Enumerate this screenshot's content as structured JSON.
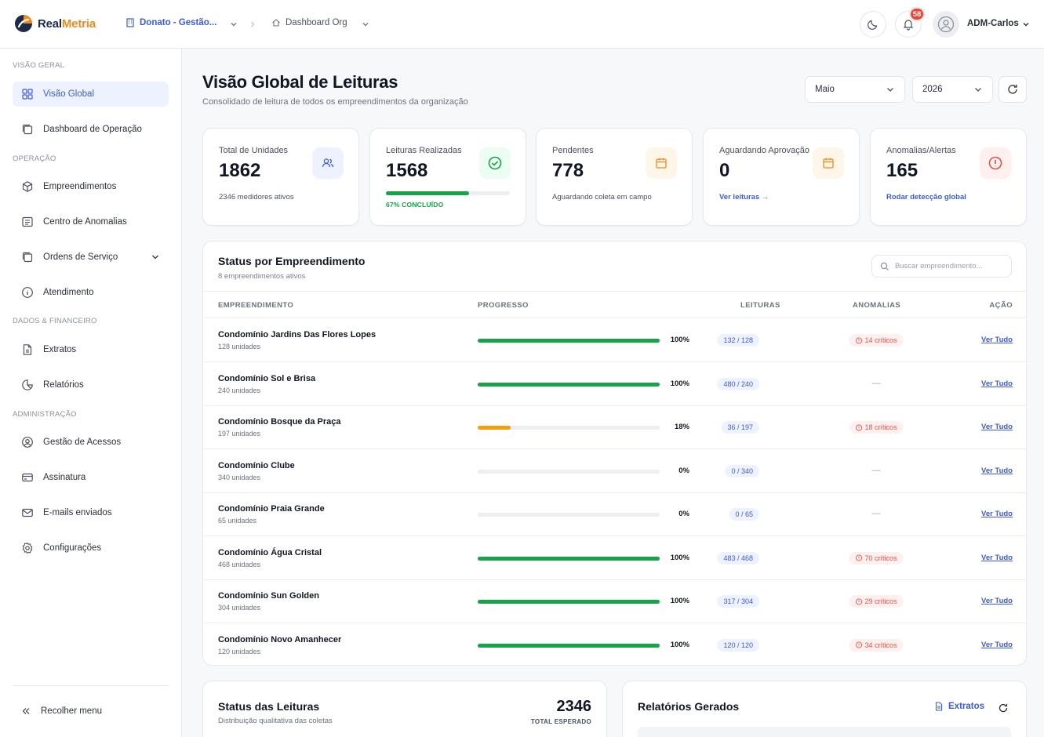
{
  "brand": {
    "name_part1": "Real",
    "name_part2": "Metria",
    "accent": "#f08a1c",
    "primary": "#1e2a4a"
  },
  "breadcrumb": {
    "org": "Donato - Gestão...",
    "page": "Dashboard Org"
  },
  "header": {
    "notifications_count": "58",
    "user_name": "ADM-Carlos"
  },
  "sidebar": {
    "sections": [
      {
        "label": "VISÃO GERAL"
      },
      {
        "label": "OPERAÇÃO"
      },
      {
        "label": "DADOS & FINANCEIRO"
      },
      {
        "label": "ADMINISTRAÇÃO"
      }
    ],
    "items": [
      {
        "label": "Visão Global",
        "icon": "grid-icon",
        "active": true
      },
      {
        "label": "Dashboard de Operação",
        "icon": "copy-icon"
      },
      {
        "label": "Empreendimentos",
        "icon": "box-icon"
      },
      {
        "label": "Centro de Anomalias",
        "icon": "list-icon"
      },
      {
        "label": "Ordens de Serviço",
        "icon": "copy-icon"
      },
      {
        "label": "Atendimento",
        "icon": "info-icon"
      },
      {
        "label": "Extratos",
        "icon": "file-icon"
      },
      {
        "label": "Relatórios",
        "icon": "pie-icon"
      },
      {
        "label": "Gestão de Acessos",
        "icon": "user-circle-icon"
      },
      {
        "label": "Assinatura",
        "icon": "card-icon"
      },
      {
        "label": "E-mails enviados",
        "icon": "mail-icon"
      },
      {
        "label": "Configurações",
        "icon": "gear-icon"
      }
    ],
    "collapse_label": "Recolher menu"
  },
  "page": {
    "title": "Visão Global de Leituras",
    "subtitle": "Consolidado de leitura de todos os empreendimentos da organização",
    "month": "Maio",
    "year": "2026"
  },
  "stats": [
    {
      "label": "Total de Unidades",
      "value": "1862",
      "sub": "2346 medidores ativos",
      "icon": "users-icon",
      "color": "#3b5bdb"
    },
    {
      "label": "Leituras Realizadas",
      "value": "1568",
      "sub": "67% CONCLUÍDO",
      "progress": 0.67,
      "icon": "check-circle-icon",
      "color": "#16a34a"
    },
    {
      "label": "Pendentes",
      "value": "778",
      "sub": "Aguardando coleta em campo",
      "icon": "calendar-icon",
      "color": "#f08a1c"
    },
    {
      "label": "Aguardando Aprovação",
      "value": "0",
      "sub": "Ver leituras →",
      "icon": "calendar-icon",
      "color": "#f08a1c"
    },
    {
      "label": "Anomalias/Alertas",
      "value": "165",
      "sub": "Rodar detecção global",
      "icon": "alert-circle-icon",
      "color": "#e25547"
    }
  ],
  "status_panel": {
    "title": "Status por Empreendimento",
    "subtitle": "8 empreendimentos ativos",
    "search_placeholder": "Buscar empreendimento...",
    "columns": [
      "EMPREENDIMENTO",
      "PROGRESSO",
      "LEITURAS",
      "ANOMALIAS",
      "AÇÃO"
    ],
    "action_label": "Ver Tudo",
    "rows": [
      {
        "name": "Condomínio Jardins Das Flores Lopes",
        "units": "128 unidades",
        "progress": 1.0,
        "pct": "100%",
        "readings": "132 / 128",
        "anomalies": "14 críticos",
        "color": "#16a34a"
      },
      {
        "name": "Condomínio Sol e Brisa",
        "units": "240 unidades",
        "progress": 1.0,
        "pct": "100%",
        "readings": "480 / 240",
        "anomalies": "—",
        "color": "#16a34a"
      },
      {
        "name": "Condomínio Bosque da Praça",
        "units": "197 unidades",
        "progress": 0.18,
        "pct": "18%",
        "readings": "36 / 197",
        "anomalies": "18 críticos",
        "color": "#f59e0b"
      },
      {
        "name": "Condomínio Clube",
        "units": "340 unidades",
        "progress": 0.0,
        "pct": "0%",
        "readings": "0 / 340",
        "anomalies": "—",
        "color": "#16a34a"
      },
      {
        "name": "Condomínio Praia Grande",
        "units": "65 unidades",
        "progress": 0.0,
        "pct": "0%",
        "readings": "0 / 65",
        "anomalies": "—",
        "color": "#16a34a"
      },
      {
        "name": "Condomínio Água Cristal",
        "units": "468 unidades",
        "progress": 1.0,
        "pct": "100%",
        "readings": "483 / 468",
        "anomalies": "70 críticos",
        "color": "#16a34a"
      },
      {
        "name": "Condomínio Sun Golden",
        "units": "304 unidades",
        "progress": 1.0,
        "pct": "100%",
        "readings": "317 / 304",
        "anomalies": "29 críticos",
        "color": "#16a34a"
      },
      {
        "name": "Condomínio Novo Amanhecer",
        "units": "120 unidades",
        "progress": 1.0,
        "pct": "100%",
        "readings": "120 / 120",
        "anomalies": "34 críticos",
        "color": "#16a34a"
      }
    ]
  },
  "reading_status": {
    "title": "Status das Leituras",
    "subtitle": "Distribuição qualitativa das coletas",
    "total": "2346",
    "total_label": "TOTAL ESPERADO"
  },
  "reports": {
    "title": "Relatórios Gerados",
    "link_label": "Extratos"
  }
}
